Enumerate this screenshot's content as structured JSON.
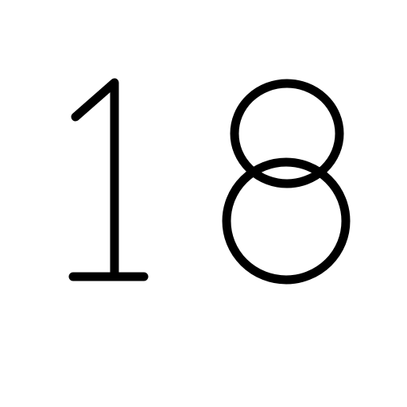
{
  "number": {
    "text": "18",
    "digits": [
      "1",
      "8"
    ]
  },
  "colors": {
    "background": "#ffffff",
    "ink": "#000000"
  }
}
